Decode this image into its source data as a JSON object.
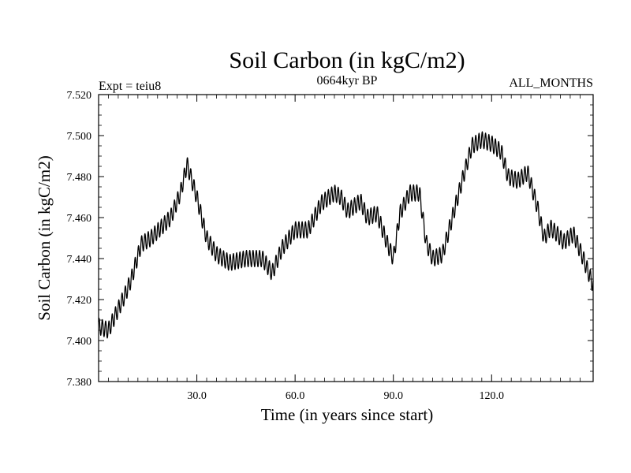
{
  "chart_data": {
    "type": "line",
    "title": "Soil Carbon (in kgC/m2)",
    "subtitle_left": "Expt = teiu8",
    "subtitle_center": "0664kyr BP",
    "subtitle_right": "ALL_MONTHS",
    "xlabel": "Time (in years since start)",
    "ylabel": "Soil Carbon (in kgC/m2)",
    "xlim": [
      0,
      151
    ],
    "ylim": [
      7.38,
      7.52
    ],
    "x_ticks": [
      30,
      60,
      90,
      120
    ],
    "x_tick_labels": [
      "30.0",
      "60.0",
      "90.0",
      "120.0"
    ],
    "y_ticks": [
      7.38,
      7.4,
      7.42,
      7.44,
      7.46,
      7.48,
      7.5,
      7.52
    ],
    "y_tick_labels": [
      "7.380",
      "7.400",
      "7.420",
      "7.440",
      "7.460",
      "7.480",
      "7.500",
      "7.520"
    ],
    "seasonal_amplitude": 0.004,
    "series": [
      {
        "name": "Soil Carbon",
        "x": [
          0,
          3,
          5,
          8,
          10,
          13,
          16,
          19,
          22,
          25,
          27,
          30,
          33,
          36,
          40,
          45,
          50,
          53,
          56,
          60,
          64,
          68,
          72,
          74,
          76,
          80,
          82,
          85,
          88,
          90,
          92,
          95,
          98,
          100,
          102,
          105,
          108,
          111,
          114,
          117,
          120,
          123,
          125,
          128,
          131,
          134,
          136,
          138,
          140,
          142,
          145,
          148,
          151
        ],
        "values": [
          7.407,
          7.405,
          7.412,
          7.422,
          7.43,
          7.447,
          7.45,
          7.455,
          7.46,
          7.472,
          7.486,
          7.47,
          7.45,
          7.442,
          7.438,
          7.44,
          7.44,
          7.433,
          7.445,
          7.454,
          7.454,
          7.467,
          7.472,
          7.47,
          7.463,
          7.468,
          7.46,
          7.462,
          7.448,
          7.44,
          7.462,
          7.472,
          7.472,
          7.448,
          7.44,
          7.442,
          7.46,
          7.478,
          7.495,
          7.498,
          7.496,
          7.492,
          7.48,
          7.478,
          7.482,
          7.465,
          7.45,
          7.455,
          7.452,
          7.448,
          7.452,
          7.44,
          7.427
        ]
      }
    ]
  }
}
